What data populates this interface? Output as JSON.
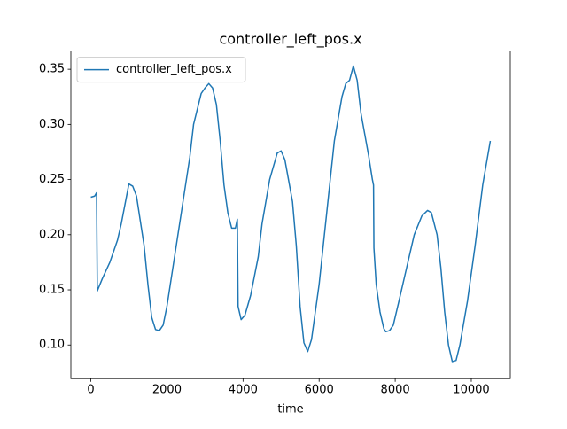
{
  "chart_data": {
    "type": "line",
    "title": "controller_left_pos.x",
    "xlabel": "time",
    "x": [
      0,
      100,
      150,
      170,
      300,
      500,
      700,
      800,
      1000,
      1100,
      1200,
      1400,
      1500,
      1600,
      1700,
      1800,
      1900,
      2000,
      2200,
      2400,
      2600,
      2700,
      2900,
      3000,
      3100,
      3200,
      3300,
      3400,
      3500,
      3600,
      3700,
      3800,
      3850,
      3870,
      3950,
      4050,
      4200,
      4400,
      4500,
      4700,
      4900,
      5000,
      5100,
      5300,
      5400,
      5500,
      5600,
      5700,
      5800,
      6000,
      6200,
      6400,
      6600,
      6700,
      6800,
      6900,
      7000,
      7100,
      7300,
      7400,
      7430,
      7440,
      7500,
      7600,
      7700,
      7750,
      7850,
      7950,
      8100,
      8300,
      8500,
      8700,
      8850,
      8950,
      9100,
      9200,
      9300,
      9400,
      9500,
      9600,
      9700,
      9900,
      10100,
      10300,
      10500
    ],
    "series": [
      {
        "name": "controller_left_pos.x",
        "color": "#1f77b4",
        "values": [
          0.234,
          0.235,
          0.238,
          0.149,
          0.16,
          0.175,
          0.195,
          0.21,
          0.246,
          0.244,
          0.235,
          0.19,
          0.155,
          0.125,
          0.114,
          0.113,
          0.118,
          0.135,
          0.18,
          0.225,
          0.27,
          0.3,
          0.328,
          0.333,
          0.337,
          0.333,
          0.318,
          0.285,
          0.245,
          0.22,
          0.206,
          0.206,
          0.214,
          0.135,
          0.123,
          0.127,
          0.145,
          0.18,
          0.21,
          0.25,
          0.274,
          0.276,
          0.268,
          0.23,
          0.19,
          0.135,
          0.102,
          0.094,
          0.105,
          0.155,
          0.22,
          0.285,
          0.325,
          0.337,
          0.34,
          0.353,
          0.34,
          0.31,
          0.272,
          0.25,
          0.245,
          0.188,
          0.155,
          0.13,
          0.115,
          0.112,
          0.113,
          0.118,
          0.14,
          0.17,
          0.2,
          0.217,
          0.222,
          0.22,
          0.2,
          0.17,
          0.13,
          0.1,
          0.085,
          0.086,
          0.1,
          0.14,
          0.19,
          0.245,
          0.285
        ]
      }
    ],
    "xlim": [
      -525,
      11025
    ],
    "ylim": [
      0.0695,
      0.3665
    ],
    "xticks": [
      0,
      2000,
      4000,
      6000,
      8000,
      10000
    ],
    "yticks": [
      {
        "value": 0.1,
        "label": "0.10"
      },
      {
        "value": 0.15,
        "label": "0.15"
      },
      {
        "value": 0.2,
        "label": "0.20"
      },
      {
        "value": 0.25,
        "label": "0.25"
      },
      {
        "value": 0.3,
        "label": "0.30"
      },
      {
        "value": 0.35,
        "label": "0.35"
      }
    ],
    "legend": "upper left"
  }
}
